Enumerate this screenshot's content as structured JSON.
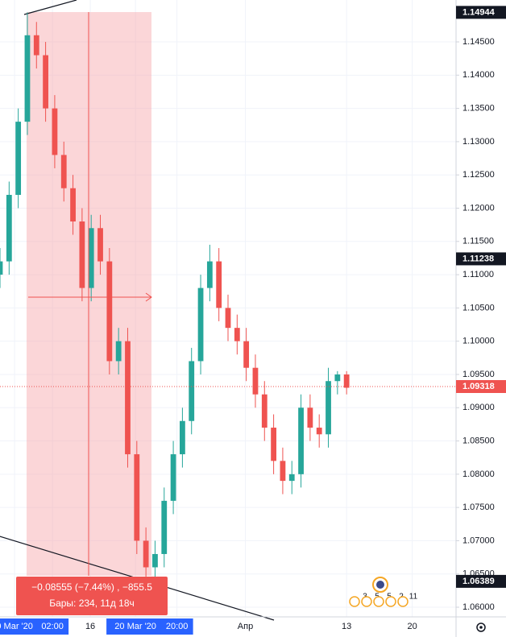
{
  "chart_data": {
    "type": "candlestick",
    "up_color": "#26a69a",
    "down_color": "#ef5350",
    "grid": true,
    "xlim": [
      0,
      50
    ],
    "ylim": [
      1.05855,
      1.1513
    ],
    "xticks": [
      {
        "value": 1.6,
        "label": "0 Mar '20",
        "highlight": true
      },
      {
        "value": 5.75,
        "label": "02:00",
        "highlight": true
      },
      {
        "value": 9.9,
        "label": "16"
      },
      {
        "value": 14.85,
        "label": "20 Mar '20",
        "highlight": true
      },
      {
        "value": 19.4,
        "label": "20:00",
        "highlight": true
      },
      {
        "value": 26.9,
        "label": "Апр"
      },
      {
        "value": 38,
        "label": "13"
      },
      {
        "value": 45.2,
        "label": "20"
      }
    ],
    "yticks": [
      {
        "value": 1.06,
        "label": "1.06000"
      },
      {
        "value": 1.065,
        "label": "1.06500"
      },
      {
        "value": 1.07,
        "label": "1.07000"
      },
      {
        "value": 1.075,
        "label": "1.07500"
      },
      {
        "value": 1.08,
        "label": "1.08000"
      },
      {
        "value": 1.085,
        "label": "1.08500"
      },
      {
        "value": 1.09,
        "label": "1.09000"
      },
      {
        "value": 1.095,
        "label": "1.09500"
      },
      {
        "value": 1.1,
        "label": "1.10000"
      },
      {
        "value": 1.105,
        "label": "1.10500"
      },
      {
        "value": 1.11,
        "label": "1.11000"
      },
      {
        "value": 1.115,
        "label": "1.11500"
      },
      {
        "value": 1.12,
        "label": "1.12000"
      },
      {
        "value": 1.125,
        "label": "1.12500"
      },
      {
        "value": 1.13,
        "label": "1.13000"
      },
      {
        "value": 1.135,
        "label": "1.13500"
      },
      {
        "value": 1.14,
        "label": "1.14000"
      },
      {
        "value": 1.145,
        "label": "1.14500"
      }
    ],
    "x": [
      0,
      1,
      2,
      3,
      4,
      5,
      6,
      7,
      8,
      9,
      10,
      11,
      12,
      13,
      14,
      15,
      16,
      17,
      18,
      19,
      20,
      21,
      22,
      23,
      24,
      25,
      26,
      27,
      28,
      29,
      30,
      31,
      32,
      33,
      34,
      35,
      36,
      37,
      38
    ],
    "open": [
      1.11,
      1.112,
      1.122,
      1.133,
      1.146,
      1.143,
      1.135,
      1.128,
      1.123,
      1.118,
      1.108,
      1.117,
      1.112,
      1.097,
      1.1,
      1.083,
      1.07,
      1.066,
      1.068,
      1.076,
      1.083,
      1.088,
      1.097,
      1.108,
      1.112,
      1.105,
      1.102,
      1.1,
      1.096,
      1.092,
      1.087,
      1.082,
      1.079,
      1.08,
      1.09,
      1.087,
      1.086,
      1.094,
      1.095
    ],
    "high": [
      1.114,
      1.124,
      1.135,
      1.14944,
      1.148,
      1.145,
      1.137,
      1.13,
      1.125,
      1.12,
      1.119,
      1.119,
      1.114,
      1.102,
      1.102,
      1.085,
      1.072,
      1.07,
      1.078,
      1.085,
      1.09,
      1.099,
      1.11,
      1.1145,
      1.114,
      1.107,
      1.104,
      1.102,
      1.098,
      1.094,
      1.089,
      1.084,
      1.082,
      1.092,
      1.092,
      1.089,
      1.096,
      1.0955,
      1.0955
    ],
    "low": [
      1.108,
      1.11,
      1.12,
      1.131,
      1.141,
      1.133,
      1.126,
      1.121,
      1.116,
      1.106,
      1.106,
      1.11,
      1.095,
      1.095,
      1.081,
      1.068,
      1.06389,
      1.064,
      1.066,
      1.074,
      1.081,
      1.086,
      1.095,
      1.106,
      1.103,
      1.1,
      1.098,
      1.094,
      1.09,
      1.085,
      1.08,
      1.077,
      1.077,
      1.078,
      1.085,
      1.084,
      1.084,
      1.092,
      1.092
    ],
    "close": [
      1.112,
      1.122,
      1.133,
      1.146,
      1.143,
      1.135,
      1.128,
      1.123,
      1.118,
      1.108,
      1.117,
      1.112,
      1.097,
      1.1,
      1.083,
      1.07,
      1.066,
      1.068,
      1.076,
      1.083,
      1.088,
      1.097,
      1.108,
      1.112,
      1.105,
      1.102,
      1.1,
      1.096,
      1.092,
      1.087,
      1.082,
      1.079,
      1.08,
      1.09,
      1.087,
      1.086,
      1.094,
      1.095,
      1.093
    ],
    "price_tags": [
      {
        "value": 1.14944,
        "color": "#131722"
      },
      {
        "value": 1.11238,
        "color": "#131722"
      },
      {
        "value": 1.09318,
        "color": "#ef5350",
        "line": true
      },
      {
        "value": 1.06389,
        "color": "#131722"
      }
    ],
    "measure": {
      "change": "−0.08555 (−7.44%) , −855.5",
      "bars": "Бары: 234, 11д 18ч"
    },
    "events": [
      "3",
      "5",
      "5",
      "2",
      "11"
    ]
  }
}
